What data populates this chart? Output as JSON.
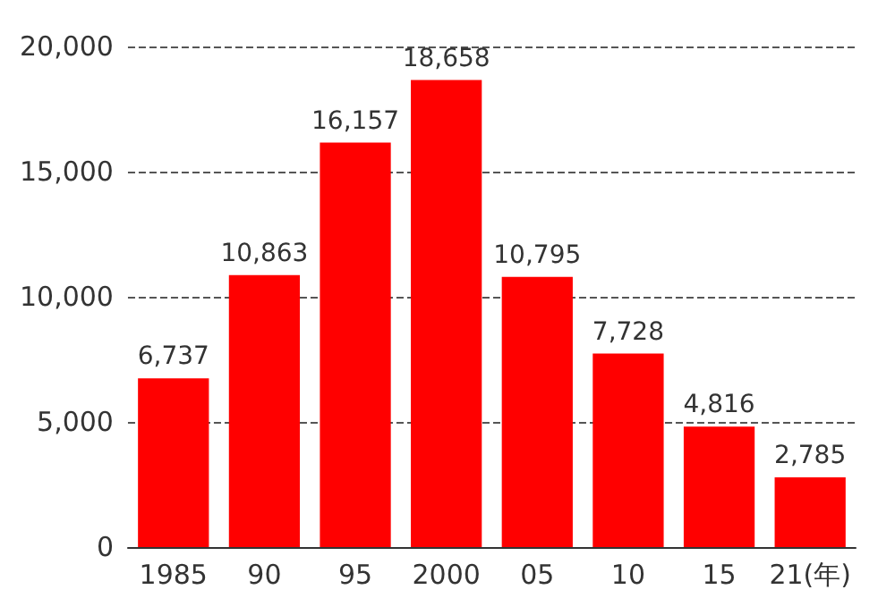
{
  "chart_data": {
    "type": "bar",
    "categories": [
      "1985",
      "90",
      "95",
      "2000",
      "05",
      "10",
      "15",
      "21(年)"
    ],
    "values": [
      6737,
      10863,
      16157,
      18658,
      10795,
      7728,
      4816,
      2785
    ],
    "value_labels": [
      "6,737",
      "10,863",
      "16,157",
      "18,658",
      "10,795",
      "7,728",
      "4,816",
      "2,785"
    ],
    "color": "#ff0000",
    "ylim": [
      0,
      20000
    ],
    "yticks": [
      0,
      {
        "value": 5000,
        "label": "5,000"
      },
      {
        "value": 10000,
        "label": "10,000"
      },
      {
        "value": 15000,
        "label": "15,000"
      },
      {
        "value": 20000,
        "label": "20,000"
      }
    ],
    "grid": "y"
  }
}
